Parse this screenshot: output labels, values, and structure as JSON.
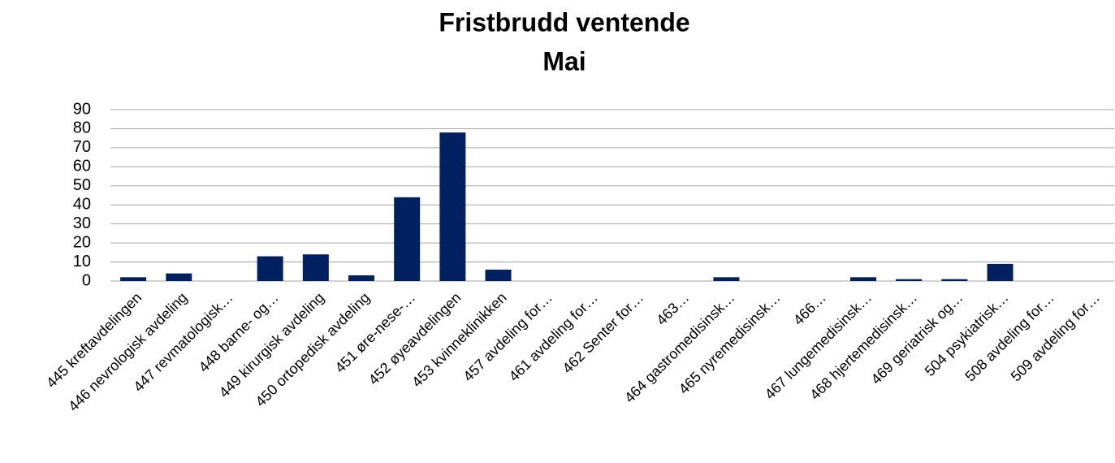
{
  "chart_data": {
    "type": "bar",
    "title": "Fristbrudd ventende",
    "subtitle": "Mai",
    "categories": [
      "445 kreftavdelingen",
      "446 nevrologisk avdeling",
      "447 revmatologisk…",
      "448 barne- og…",
      "449 kirurgisk avdeling",
      "450 ortopedisk avdeling",
      "451 øre-nese-…",
      "452 øyeavdelingen",
      "453 kvinneklinikken",
      "457 avdeling for…",
      "461 avdeling for…",
      "462 Senter for…",
      "463…",
      "464 gastromedisinsk…",
      "465 nyremedisinsk…",
      "466…",
      "467 lungemedisinsk…",
      "468 hjertemedisinsk…",
      "469 geriatrisk og…",
      "504 psykiatrisk…",
      "508 avdeling for…",
      "509 avdeling for…"
    ],
    "values": [
      2,
      4,
      0,
      13,
      14,
      3,
      44,
      78,
      6,
      0,
      0,
      0,
      0,
      2,
      0,
      0,
      2,
      1,
      1,
      9,
      0,
      0
    ],
    "color": "#002060",
    "ylim": [
      0,
      90
    ],
    "yticks": [
      0,
      10,
      20,
      30,
      40,
      50,
      60,
      70,
      80,
      90
    ],
    "grid": true
  }
}
